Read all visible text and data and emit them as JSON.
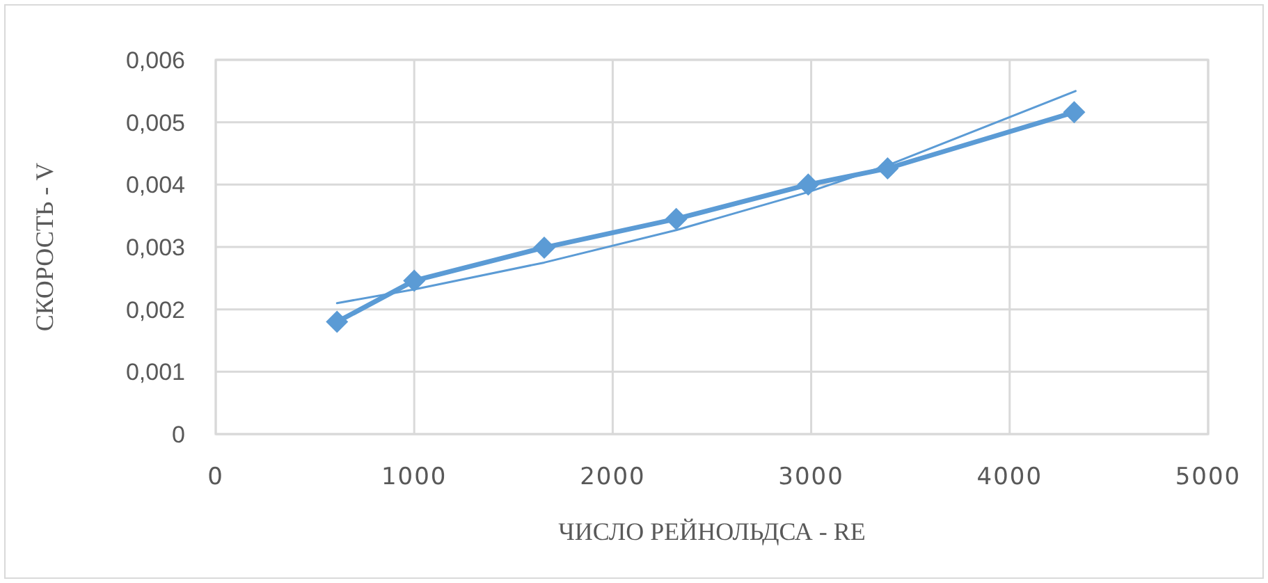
{
  "chart_data": {
    "type": "line",
    "xlabel": "ЧИСЛО РЕЙНОЛЬДСА - RE",
    "ylabel": "СКОРОСТЬ - V",
    "x": [
      611,
      1000,
      1655,
      2320,
      2985,
      3385,
      4325
    ],
    "series": [
      {
        "color": "#5b9bd5",
        "values": [
          0.0018,
          0.00246,
          0.00299,
          0.00345,
          0.004,
          0.00426,
          0.00516
        ]
      },
      {
        "color": "#5b9bd5",
        "marker": "none",
        "x": [
          611,
          1000,
          1655,
          2320,
          2985,
          3385,
          4332
        ],
        "values": [
          0.0021,
          0.00232,
          0.00275,
          0.00327,
          0.00388,
          0.00431,
          0.0055
        ]
      }
    ],
    "xlim": [
      0,
      5000
    ],
    "xticks": [
      0,
      1000,
      2000,
      3000,
      4000,
      5000
    ],
    "ylim": [
      0,
      0.006
    ],
    "yticks": [
      0,
      {
        "value": 0.001,
        "label": "0,001"
      },
      {
        "value": 0.002,
        "label": "0,002"
      },
      {
        "value": 0.003,
        "label": "0,003"
      },
      {
        "value": 0.004,
        "label": "0,004"
      },
      {
        "value": 0.005,
        "label": "0,005"
      },
      {
        "value": 0.006,
        "label": "0,006"
      }
    ],
    "grid": true,
    "marker": "diamond",
    "line_style": "solid"
  }
}
